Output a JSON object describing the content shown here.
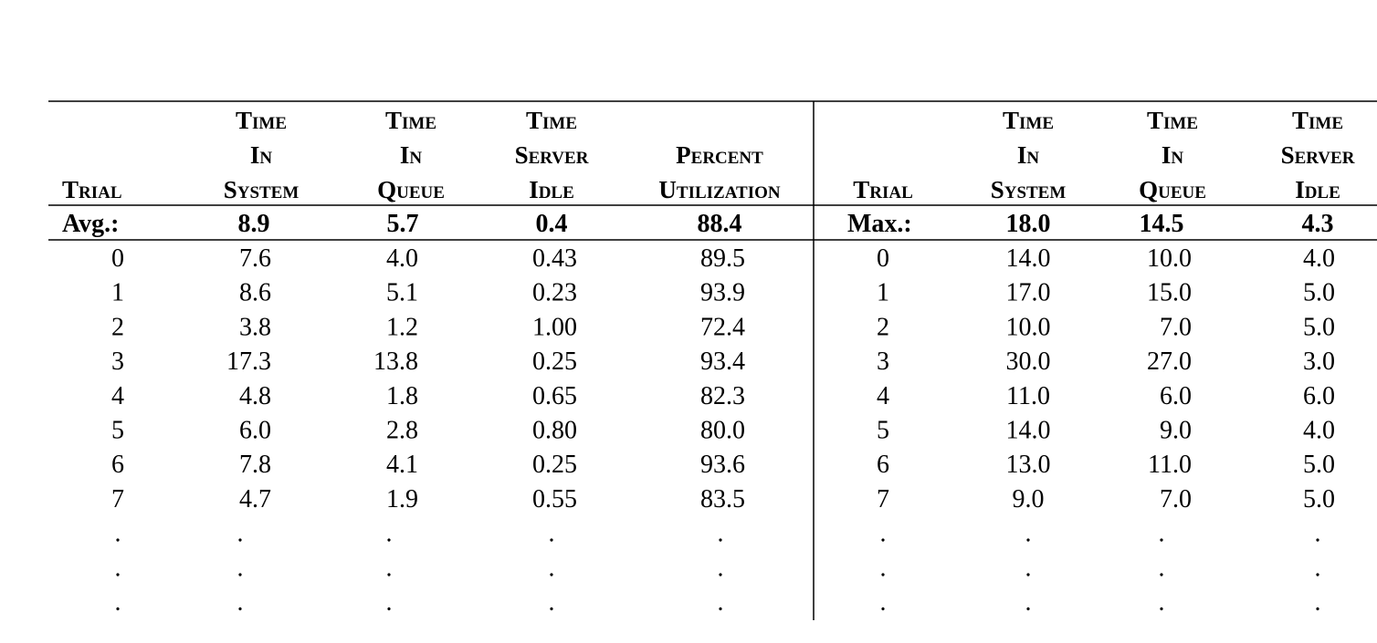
{
  "left": {
    "headers": [
      [
        "Trial"
      ],
      [
        "Time",
        "In",
        "System"
      ],
      [
        "Time",
        "In",
        "Queue"
      ],
      [
        "Time",
        "Server",
        "Idle"
      ],
      [
        "Percent",
        "Utilization"
      ]
    ],
    "summary": [
      "Avg.:",
      "8.9",
      "5.7",
      "0.4",
      "88.4"
    ],
    "rows": [
      [
        "0",
        "7.6",
        "4.0",
        "0.43",
        "89.5"
      ],
      [
        "1",
        "8.6",
        "5.1",
        "0.23",
        "93.9"
      ],
      [
        "2",
        "3.8",
        "1.2",
        "1.00",
        "72.4"
      ],
      [
        "3",
        "17.3",
        "13.8",
        "0.25",
        "93.4"
      ],
      [
        "4",
        "4.8",
        "1.8",
        "0.65",
        "82.3"
      ],
      [
        "5",
        "6.0",
        "2.8",
        "0.80",
        "80.0"
      ],
      [
        "6",
        "7.8",
        "4.1",
        "0.25",
        "93.6"
      ],
      [
        "7",
        "4.7",
        "1.9",
        "0.55",
        "83.5"
      ],
      [
        ".",
        ".",
        ".",
        ".",
        "."
      ],
      [
        ".",
        ".",
        ".",
        ".",
        "."
      ],
      [
        ".",
        ".",
        ".",
        ".",
        "."
      ]
    ]
  },
  "right": {
    "headers": [
      [
        "Trial"
      ],
      [
        "Time",
        "In",
        "System"
      ],
      [
        "Time",
        "In",
        "Queue"
      ],
      [
        "Time",
        "Server",
        "Idle"
      ]
    ],
    "summary": [
      "Max.:",
      "18.0",
      "14.5",
      "4.3"
    ],
    "rows": [
      [
        "0",
        "14.0",
        "10.0",
        "4.0"
      ],
      [
        "1",
        "17.0",
        "15.0",
        "5.0"
      ],
      [
        "2",
        "10.0",
        "7.0",
        "5.0"
      ],
      [
        "3",
        "30.0",
        "27.0",
        "3.0"
      ],
      [
        "4",
        "11.0",
        "6.0",
        "6.0"
      ],
      [
        "5",
        "14.0",
        "9.0",
        "4.0"
      ],
      [
        "6",
        "13.0",
        "11.0",
        "5.0"
      ],
      [
        "7",
        "9.0",
        "7.0",
        "5.0"
      ],
      [
        ".",
        ".",
        ".",
        "."
      ],
      [
        ".",
        ".",
        ".",
        "."
      ],
      [
        ".",
        ".",
        ".",
        "."
      ]
    ]
  }
}
